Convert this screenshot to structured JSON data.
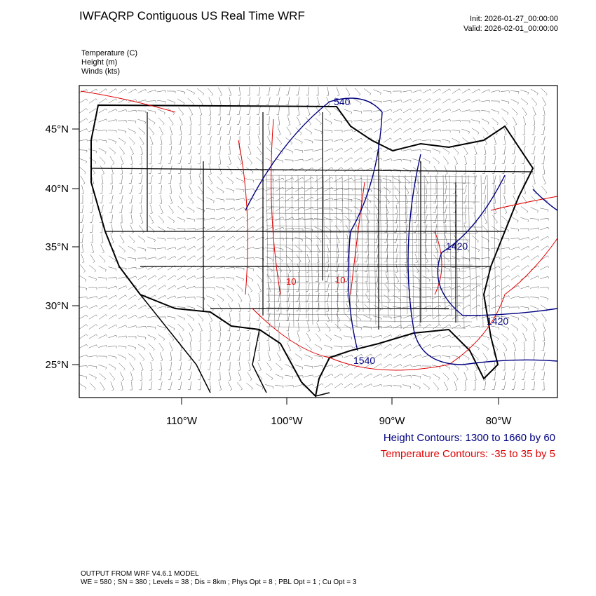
{
  "header": {
    "title": "IWFAQRP Contiguous US Real Time WRF",
    "init": "Init: 2026-01-27_00:00:00",
    "valid": "Valid: 2026-02-01_00:00:00",
    "fields": [
      "Temperature   (C)",
      "Height   (m)",
      "Winds   (kts)"
    ]
  },
  "map": {
    "lat_labels": [
      "45°N",
      "40°N",
      "35°N",
      "30°N",
      "25°N"
    ],
    "lon_labels": [
      "110°W",
      "100°W",
      "90°W",
      "80°W"
    ],
    "height_labels": [
      "540",
      "1420",
      "1420",
      "1540"
    ],
    "temperature_labels": [
      "10",
      "10"
    ]
  },
  "legend": {
    "height": "Height Contours: 1300 to 1660 by 60",
    "temperature": "Temperature Contours: -35 to 35 by 5"
  },
  "footer": {
    "model": "OUTPUT FROM WRF V4.6.1 MODEL",
    "settings": "WE = 580 ; SN = 380 ; Levels = 38 ; Dis = 8km ; Phys Opt = 8 ; PBL Opt = 1 ; Cu Opt = 3"
  }
}
